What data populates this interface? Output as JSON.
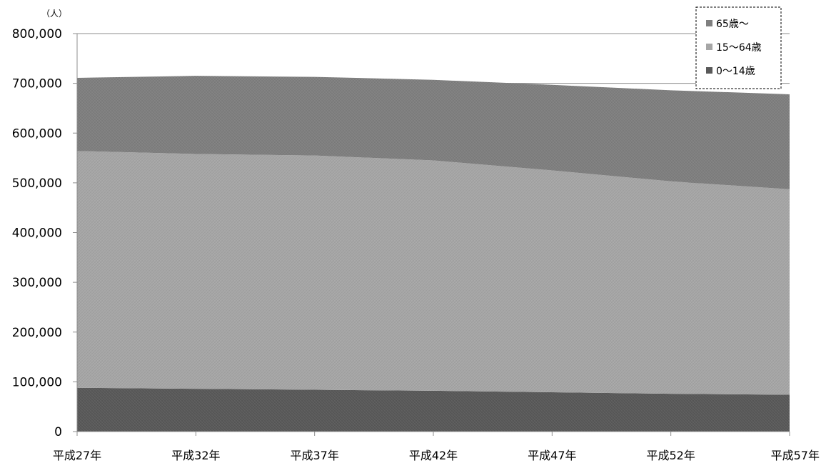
{
  "chart_data": {
    "type": "area",
    "stacked": true,
    "unit": "（人）",
    "categories": [
      "平成27年",
      "平成32年",
      "平成37年",
      "平成42年",
      "平成47年",
      "平成52年",
      "平成57年"
    ],
    "ylim": [
      0,
      800000
    ],
    "yticks": [
      0,
      100000,
      200000,
      300000,
      400000,
      500000,
      600000,
      700000,
      800000
    ],
    "ytick_labels": [
      "0",
      "100,000",
      "200,000",
      "300,000",
      "400,000",
      "500,000",
      "600,000",
      "700,000",
      "800,000"
    ],
    "grid": true,
    "legend_position": "top-right",
    "series": [
      {
        "name": "0～14歳",
        "color": "#595959",
        "values": [
          88000,
          86000,
          84000,
          82000,
          79000,
          76000,
          74000
        ]
      },
      {
        "name": "15～64歳",
        "color": "#a6a6a6",
        "values": [
          476000,
          472000,
          471000,
          463000,
          446000,
          427000,
          413000
        ]
      },
      {
        "name": "65歳～",
        "color": "#7f7f7f",
        "values": [
          147000,
          157000,
          158000,
          162000,
          172000,
          183000,
          191000
        ]
      }
    ],
    "legend_order": [
      "65歳～",
      "15～64歳",
      "0～14歳"
    ]
  }
}
